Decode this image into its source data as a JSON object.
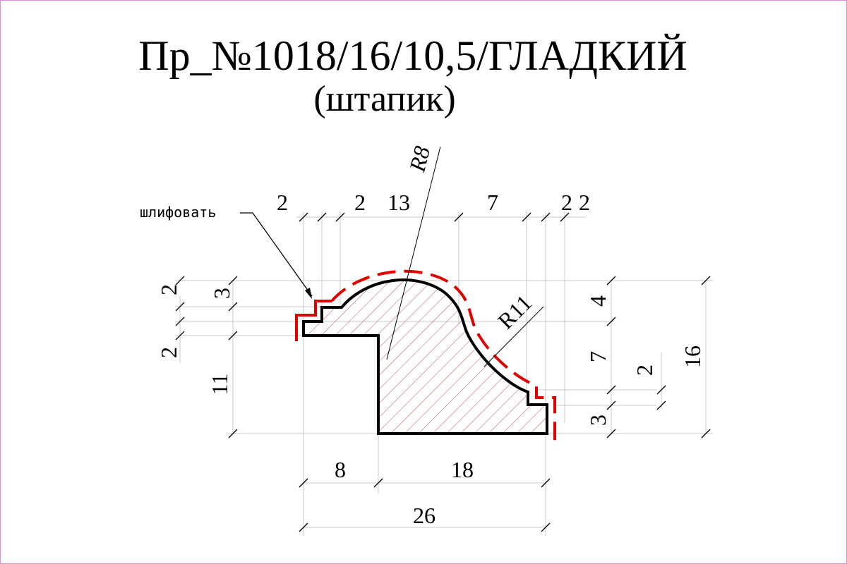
{
  "title": "Пр_№1018/16/10,5/ГЛАДКИЙ",
  "subtitle": "(штапик)",
  "note": "шлифовать",
  "radii": {
    "r1": "R8",
    "r2": "R11"
  },
  "top_dims": {
    "d1": "2",
    "d2": "2",
    "d3": "13",
    "d4": "7",
    "d5": "2",
    "d6": "2"
  },
  "left_dims": {
    "d1": "2",
    "d2": "3",
    "d3": "2",
    "d4": "11"
  },
  "right_dims": {
    "d1": "4",
    "d2": "7",
    "d3": "2",
    "d4": "3",
    "d5": "16"
  },
  "bottom_dims": {
    "d1": "8",
    "d2": "18",
    "d3": "26"
  },
  "colors": {
    "outline": "#000000",
    "sanding": "#e00000",
    "hatch": "#c05050",
    "extension": "#c8c8c8",
    "frame": "#e08be0"
  }
}
